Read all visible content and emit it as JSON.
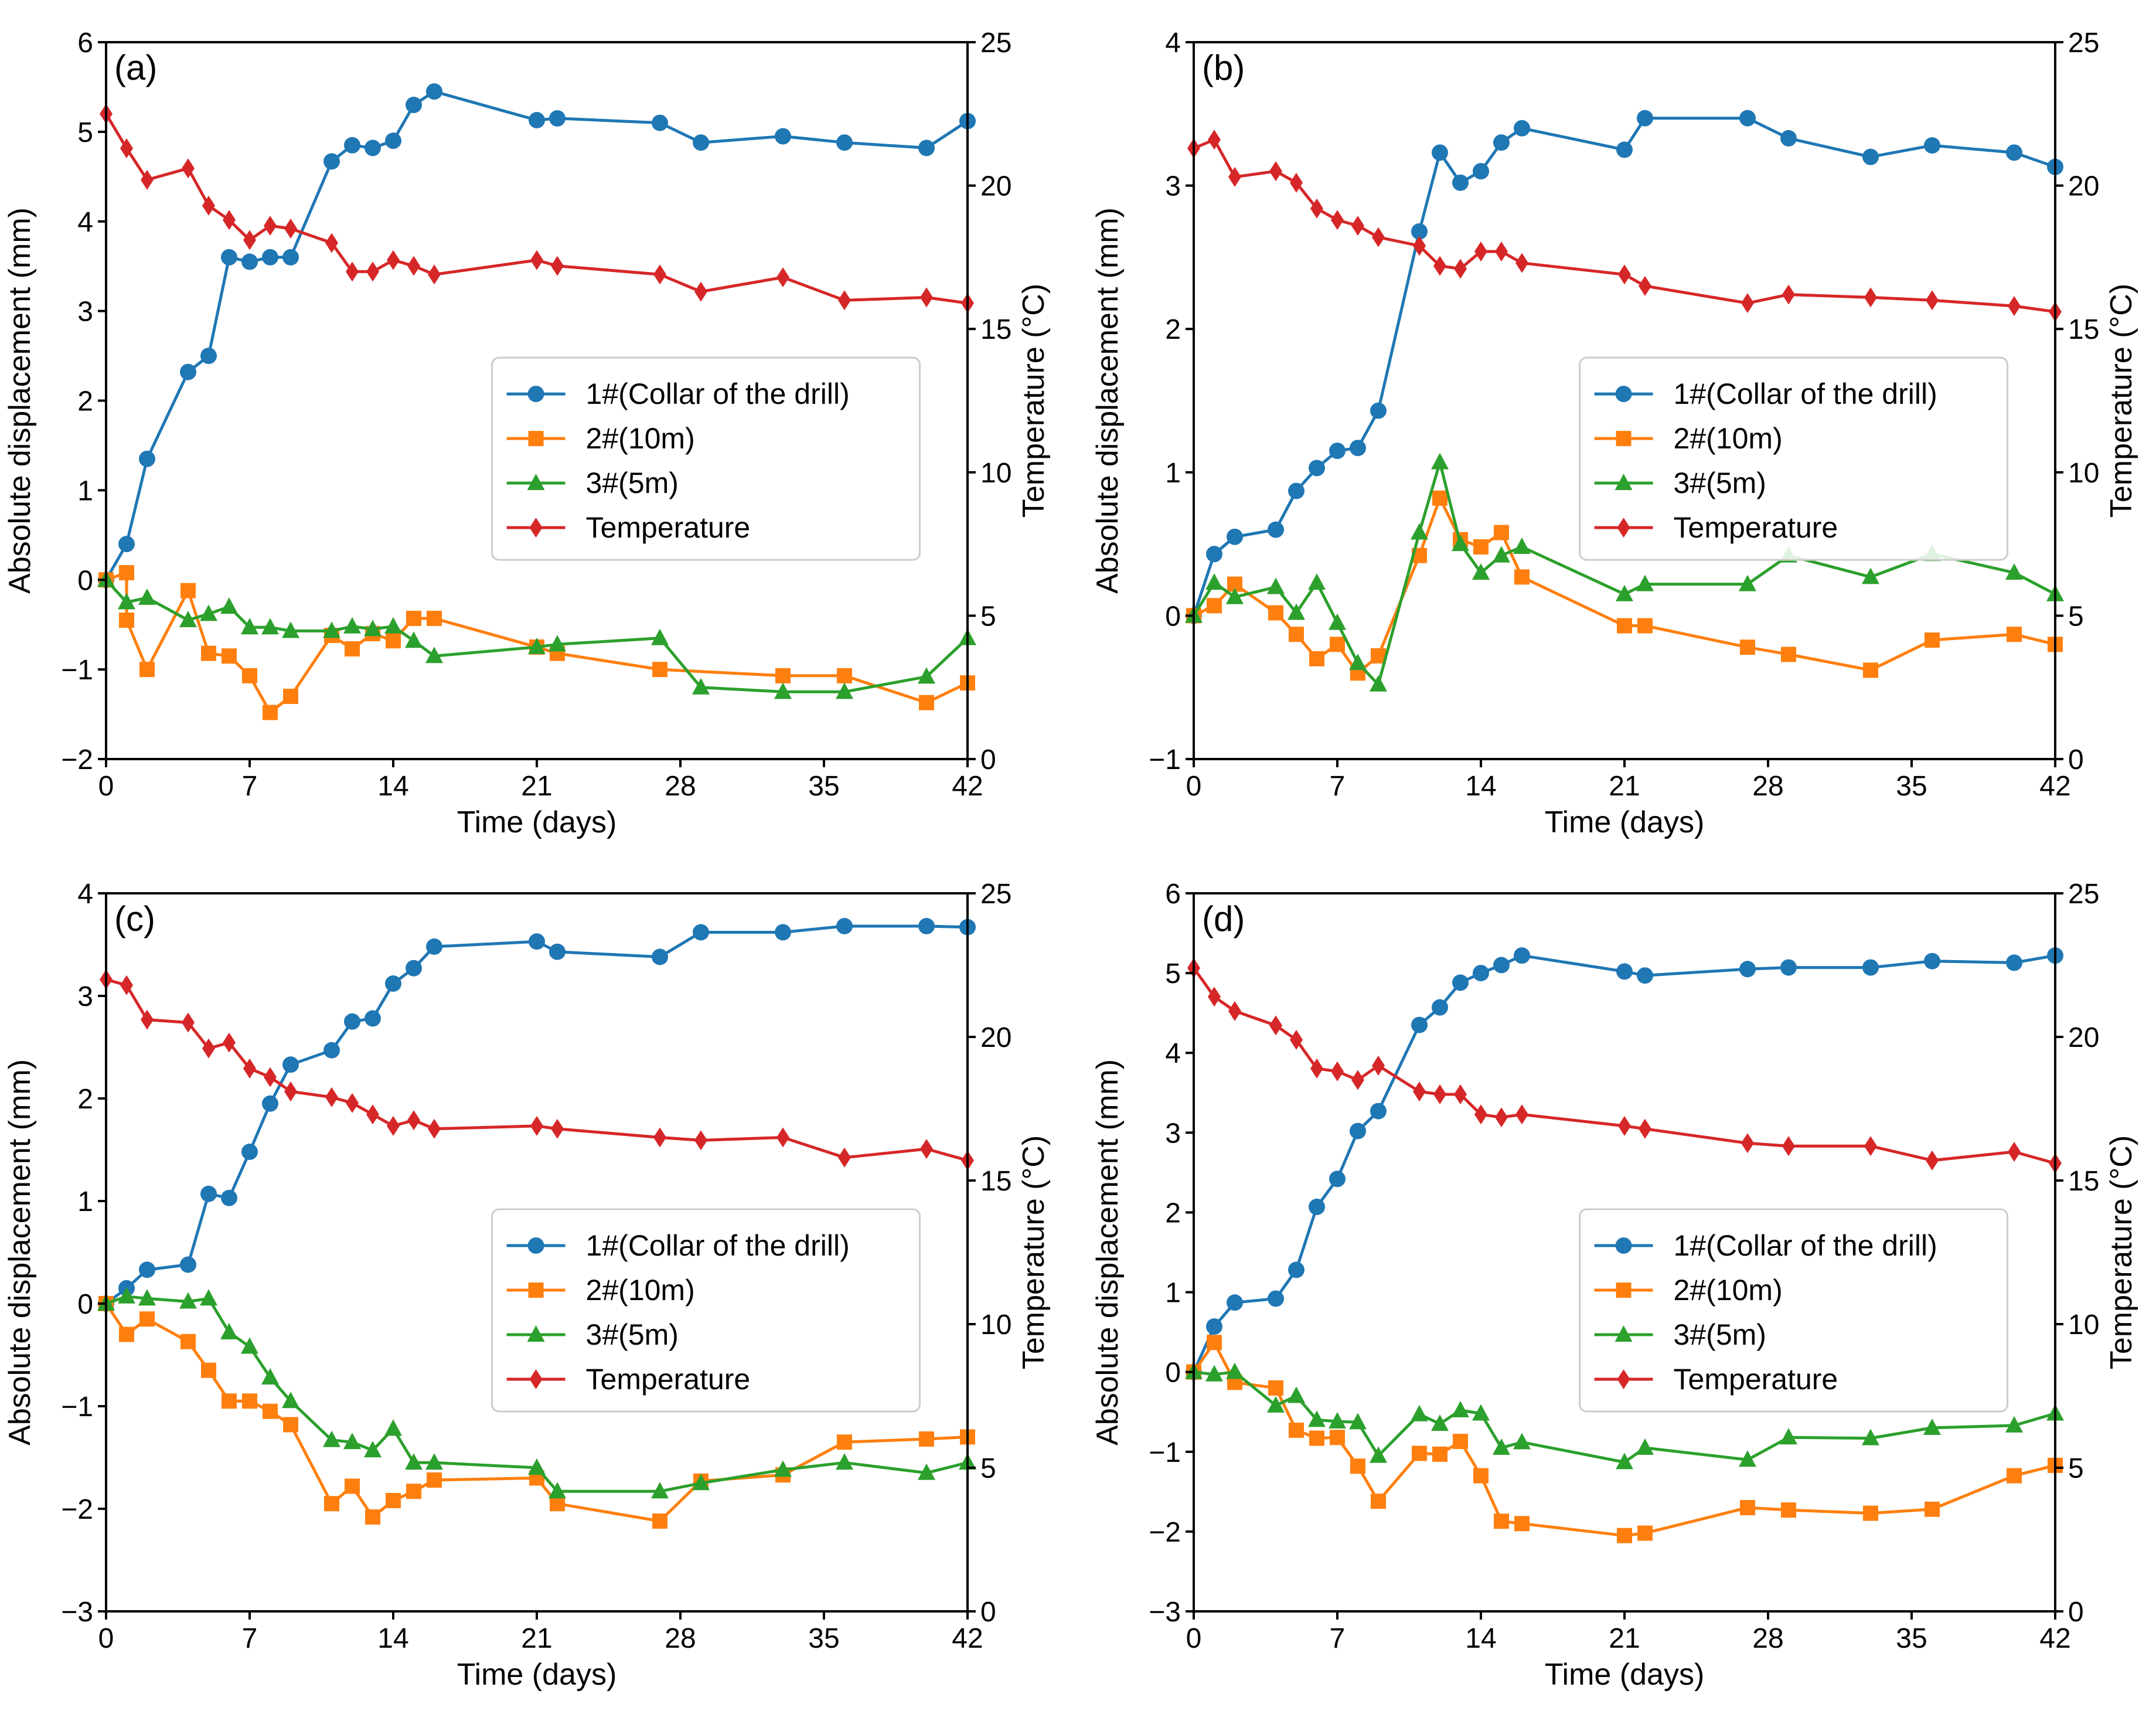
{
  "colors": {
    "s1": "#1f77b4",
    "s2": "#ff7f0e",
    "s3": "#2ca02c",
    "temp": "#d62728"
  },
  "chart_data": [
    {
      "type": "line",
      "panel_label": "(a)",
      "xlabel": "Time (days)",
      "ylabel": "Absolute displacement (mm)",
      "y2label": "Temperature (°C)",
      "xlim": [
        0,
        42
      ],
      "xticks": [
        0,
        7,
        14,
        21,
        28,
        35,
        42
      ],
      "ylim": [
        -2,
        6
      ],
      "yticks": [
        -2,
        -1,
        0,
        1,
        2,
        3,
        4,
        5,
        6
      ],
      "y2lim": [
        0,
        25
      ],
      "y2ticks": [
        0,
        5,
        10,
        15,
        20,
        25
      ],
      "legend_position": "center-right",
      "series": [
        {
          "name": "1#(Collar of the drill)",
          "color_key": "s1",
          "marker": "circle",
          "axis": "left",
          "x": [
            0,
            1,
            2,
            4,
            5,
            6,
            7,
            8,
            9,
            11,
            12,
            13,
            14,
            15,
            16,
            21,
            22,
            27,
            29,
            33,
            36,
            40,
            42
          ],
          "y": [
            0,
            0.4,
            1.35,
            2.32,
            2.5,
            3.6,
            3.55,
            3.6,
            3.6,
            4.67,
            4.85,
            4.82,
            4.9,
            5.3,
            5.45,
            5.13,
            5.15,
            5.1,
            4.88,
            4.95,
            4.88,
            4.82,
            5.12
          ]
        },
        {
          "name": "2#(10m)",
          "color_key": "s2",
          "marker": "square",
          "axis": "left",
          "x": [
            0,
            1,
            1,
            2,
            4,
            5,
            6,
            7,
            8,
            9,
            11,
            12,
            13,
            14,
            15,
            16,
            21,
            22,
            27,
            33,
            36,
            40,
            42
          ],
          "y": [
            0,
            0.08,
            -0.45,
            -1.0,
            -0.12,
            -0.82,
            -0.85,
            -1.07,
            -1.48,
            -1.3,
            -0.62,
            -0.77,
            -0.6,
            -0.68,
            -0.43,
            -0.43,
            -0.75,
            -0.82,
            -1.0,
            -1.07,
            -1.07,
            -1.37,
            -1.15
          ]
        },
        {
          "name": "3#(5m)",
          "color_key": "s3",
          "marker": "triangle",
          "axis": "left",
          "x": [
            0,
            1,
            2,
            4,
            5,
            6,
            7,
            8,
            9,
            11,
            12,
            13,
            14,
            15,
            16,
            21,
            22,
            27,
            29,
            33,
            36,
            40,
            42
          ],
          "y": [
            0,
            -0.25,
            -0.2,
            -0.45,
            -0.38,
            -0.3,
            -0.53,
            -0.53,
            -0.57,
            -0.57,
            -0.52,
            -0.55,
            -0.52,
            -0.68,
            -0.85,
            -0.75,
            -0.72,
            -0.65,
            -1.2,
            -1.25,
            -1.25,
            -1.08,
            -0.65
          ]
        },
        {
          "name": "Temperature",
          "color_key": "temp",
          "marker": "diamond",
          "axis": "right",
          "x": [
            0,
            1,
            2,
            4,
            5,
            6,
            7,
            8,
            9,
            11,
            12,
            13,
            14,
            15,
            16,
            21,
            22,
            27,
            29,
            33,
            36,
            40,
            42
          ],
          "y": [
            22.5,
            21.3,
            20.2,
            20.6,
            19.3,
            18.8,
            18.1,
            18.6,
            18.5,
            18.0,
            17.0,
            17.0,
            17.4,
            17.2,
            16.9,
            17.4,
            17.2,
            16.9,
            16.3,
            16.8,
            16.0,
            16.1,
            15.9
          ]
        }
      ]
    },
    {
      "type": "line",
      "panel_label": "(b)",
      "xlabel": "Time (days)",
      "ylabel": "Absolute displacement (mm)",
      "y2label": "Temperature (°C)",
      "xlim": [
        0,
        42
      ],
      "xticks": [
        0,
        7,
        14,
        21,
        28,
        35,
        42
      ],
      "ylim": [
        -1,
        4
      ],
      "yticks": [
        -1,
        0,
        1,
        2,
        3,
        4
      ],
      "y2lim": [
        0,
        25
      ],
      "y2ticks": [
        0,
        5,
        10,
        15,
        20,
        25
      ],
      "legend_position": "center-right",
      "series": [
        {
          "name": "1#(Collar of the drill)",
          "color_key": "s1",
          "marker": "circle",
          "axis": "left",
          "x": [
            0,
            1,
            2,
            4,
            5,
            6,
            7,
            8,
            9,
            11,
            12,
            13,
            14,
            15,
            16,
            21,
            22,
            27,
            29,
            33,
            36,
            40,
            42
          ],
          "y": [
            0,
            0.43,
            0.55,
            0.6,
            0.87,
            1.03,
            1.15,
            1.17,
            1.43,
            2.68,
            3.23,
            3.02,
            3.1,
            3.3,
            3.4,
            3.25,
            3.47,
            3.47,
            3.33,
            3.2,
            3.28,
            3.23,
            3.13
          ]
        },
        {
          "name": "2#(10m)",
          "color_key": "s2",
          "marker": "square",
          "axis": "left",
          "x": [
            0,
            1,
            2,
            4,
            5,
            6,
            7,
            8,
            9,
            11,
            12,
            13,
            14,
            15,
            16,
            21,
            22,
            27,
            29,
            33,
            36,
            40,
            42
          ],
          "y": [
            0,
            0.07,
            0.22,
            0.02,
            -0.13,
            -0.3,
            -0.2,
            -0.4,
            -0.28,
            0.42,
            0.82,
            0.53,
            0.48,
            0.58,
            0.27,
            -0.07,
            -0.07,
            -0.22,
            -0.27,
            -0.38,
            -0.17,
            -0.13,
            -0.2
          ]
        },
        {
          "name": "3#(5m)",
          "color_key": "s3",
          "marker": "triangle",
          "axis": "left",
          "x": [
            0,
            1,
            2,
            4,
            5,
            6,
            7,
            8,
            9,
            11,
            12,
            13,
            14,
            15,
            16,
            21,
            22,
            27,
            29,
            33,
            36,
            40,
            42
          ],
          "y": [
            0,
            0.23,
            0.13,
            0.2,
            0.02,
            0.23,
            -0.05,
            -0.33,
            -0.48,
            0.58,
            1.07,
            0.5,
            0.3,
            0.42,
            0.48,
            0.15,
            0.22,
            0.22,
            0.42,
            0.27,
            0.43,
            0.3,
            0.15
          ]
        },
        {
          "name": "Temperature",
          "color_key": "temp",
          "marker": "diamond",
          "axis": "right",
          "x": [
            0,
            1,
            2,
            4,
            5,
            6,
            7,
            8,
            9,
            11,
            12,
            13,
            14,
            15,
            16,
            21,
            22,
            27,
            29,
            33,
            36,
            40,
            42
          ],
          "y": [
            21.3,
            21.6,
            20.3,
            20.5,
            20.1,
            19.2,
            18.8,
            18.6,
            18.2,
            17.9,
            17.2,
            17.1,
            17.7,
            17.7,
            17.3,
            16.9,
            16.5,
            15.9,
            16.2,
            16.1,
            16.0,
            15.8,
            15.6
          ]
        }
      ]
    },
    {
      "type": "line",
      "panel_label": "(c)",
      "xlabel": "Time (days)",
      "ylabel": "Absolute displacement (mm)",
      "y2label": "Temperature (°C)",
      "xlim": [
        0,
        42
      ],
      "xticks": [
        0,
        7,
        14,
        21,
        28,
        35,
        42
      ],
      "ylim": [
        -3,
        4
      ],
      "yticks": [
        -3,
        -2,
        -1,
        0,
        1,
        2,
        3,
        4
      ],
      "y2lim": [
        0,
        25
      ],
      "y2ticks": [
        0,
        5,
        10,
        15,
        20,
        25
      ],
      "legend_position": "center-right",
      "series": [
        {
          "name": "1#(Collar of the drill)",
          "color_key": "s1",
          "marker": "circle",
          "axis": "left",
          "x": [
            0,
            1,
            2,
            4,
            5,
            6,
            7,
            8,
            9,
            11,
            12,
            13,
            14,
            15,
            16,
            21,
            22,
            27,
            29,
            33,
            36,
            40,
            42
          ],
          "y": [
            0,
            0.15,
            0.33,
            0.38,
            1.07,
            1.03,
            1.48,
            1.95,
            2.33,
            2.47,
            2.75,
            2.78,
            3.12,
            3.27,
            3.48,
            3.53,
            3.43,
            3.38,
            3.62,
            3.62,
            3.68,
            3.68,
            3.67
          ]
        },
        {
          "name": "2#(10m)",
          "color_key": "s2",
          "marker": "square",
          "axis": "left",
          "x": [
            0,
            1,
            2,
            4,
            5,
            6,
            7,
            8,
            9,
            11,
            12,
            13,
            14,
            15,
            16,
            21,
            22,
            27,
            29,
            33,
            36,
            40,
            42
          ],
          "y": [
            0,
            -0.3,
            -0.15,
            -0.37,
            -0.65,
            -0.95,
            -0.95,
            -1.05,
            -1.18,
            -1.95,
            -1.78,
            -2.08,
            -1.92,
            -1.83,
            -1.72,
            -1.7,
            -1.95,
            -2.12,
            -1.73,
            -1.67,
            -1.35,
            -1.32,
            -1.3
          ]
        },
        {
          "name": "3#(5m)",
          "color_key": "s3",
          "marker": "triangle",
          "axis": "left",
          "x": [
            0,
            1,
            2,
            4,
            5,
            6,
            7,
            8,
            9,
            11,
            12,
            13,
            14,
            15,
            16,
            21,
            22,
            27,
            29,
            33,
            36,
            40,
            42
          ],
          "y": [
            0,
            0.07,
            0.05,
            0.02,
            0.05,
            -0.28,
            -0.42,
            -0.72,
            -0.95,
            -1.33,
            -1.35,
            -1.43,
            -1.22,
            -1.55,
            -1.55,
            -1.6,
            -1.83,
            -1.83,
            -1.75,
            -1.62,
            -1.55,
            -1.65,
            -1.55
          ]
        },
        {
          "name": "Temperature",
          "color_key": "temp",
          "marker": "diamond",
          "axis": "right",
          "x": [
            0,
            1,
            2,
            4,
            5,
            6,
            7,
            8,
            9,
            11,
            12,
            13,
            14,
            15,
            16,
            21,
            22,
            27,
            29,
            33,
            36,
            40,
            42
          ],
          "y": [
            22.0,
            21.8,
            20.6,
            20.5,
            19.6,
            19.8,
            18.9,
            18.6,
            18.1,
            17.9,
            17.7,
            17.3,
            16.9,
            17.1,
            16.8,
            16.9,
            16.8,
            16.5,
            16.4,
            16.5,
            15.8,
            16.1,
            15.7
          ]
        }
      ]
    },
    {
      "type": "line",
      "panel_label": "(d)",
      "xlabel": "Time (days)",
      "ylabel": "Absolute displacement (mm)",
      "y2label": "Temperature (°C)",
      "xlim": [
        0,
        42
      ],
      "xticks": [
        0,
        7,
        14,
        21,
        28,
        35,
        42
      ],
      "ylim": [
        -3,
        6
      ],
      "yticks": [
        -3,
        -2,
        -1,
        0,
        1,
        2,
        3,
        4,
        5,
        6
      ],
      "y2lim": [
        0,
        25
      ],
      "y2ticks": [
        0,
        5,
        10,
        15,
        20,
        25
      ],
      "legend_position": "center-right",
      "series": [
        {
          "name": "1#(Collar of the drill)",
          "color_key": "s1",
          "marker": "circle",
          "axis": "left",
          "x": [
            0,
            1,
            2,
            4,
            5,
            6,
            7,
            8,
            9,
            11,
            12,
            13,
            14,
            15,
            16,
            21,
            22,
            27,
            29,
            33,
            36,
            40,
            42
          ],
          "y": [
            0,
            0.57,
            0.87,
            0.92,
            1.28,
            2.07,
            2.42,
            3.02,
            3.27,
            4.35,
            4.57,
            4.88,
            5.0,
            5.1,
            5.22,
            5.02,
            4.97,
            5.05,
            5.07,
            5.07,
            5.15,
            5.13,
            5.22
          ]
        },
        {
          "name": "2#(10m)",
          "color_key": "s2",
          "marker": "square",
          "axis": "left",
          "x": [
            0,
            1,
            2,
            4,
            5,
            6,
            7,
            8,
            9,
            11,
            12,
            13,
            14,
            15,
            16,
            21,
            22,
            27,
            29,
            33,
            36,
            40,
            42
          ],
          "y": [
            0,
            0.37,
            -0.13,
            -0.2,
            -0.73,
            -0.83,
            -0.82,
            -1.18,
            -1.62,
            -1.02,
            -1.03,
            -0.87,
            -1.3,
            -1.87,
            -1.9,
            -2.05,
            -2.02,
            -1.7,
            -1.73,
            -1.77,
            -1.72,
            -1.3,
            -1.17
          ]
        },
        {
          "name": "3#(5m)",
          "color_key": "s3",
          "marker": "triangle",
          "axis": "left",
          "x": [
            0,
            1,
            2,
            4,
            5,
            6,
            7,
            8,
            9,
            11,
            12,
            13,
            14,
            15,
            16,
            21,
            22,
            27,
            29,
            33,
            36,
            40,
            42
          ],
          "y": [
            0,
            -0.03,
            0.0,
            -0.42,
            -0.3,
            -0.6,
            -0.62,
            -0.63,
            -1.05,
            -0.53,
            -0.65,
            -0.48,
            -0.52,
            -0.95,
            -0.88,
            -1.13,
            -0.95,
            -1.1,
            -0.82,
            -0.83,
            -0.7,
            -0.67,
            -0.52
          ]
        },
        {
          "name": "Temperature",
          "color_key": "temp",
          "marker": "diamond",
          "axis": "right",
          "x": [
            0,
            1,
            2,
            4,
            5,
            6,
            7,
            8,
            9,
            11,
            12,
            13,
            14,
            15,
            16,
            21,
            22,
            27,
            29,
            33,
            36,
            40,
            42
          ],
          "y": [
            22.4,
            21.4,
            20.9,
            20.4,
            19.9,
            18.9,
            18.8,
            18.5,
            19.0,
            18.1,
            18.0,
            18.0,
            17.3,
            17.2,
            17.3,
            16.9,
            16.8,
            16.3,
            16.2,
            16.2,
            15.7,
            16.0,
            15.6
          ]
        }
      ]
    }
  ]
}
